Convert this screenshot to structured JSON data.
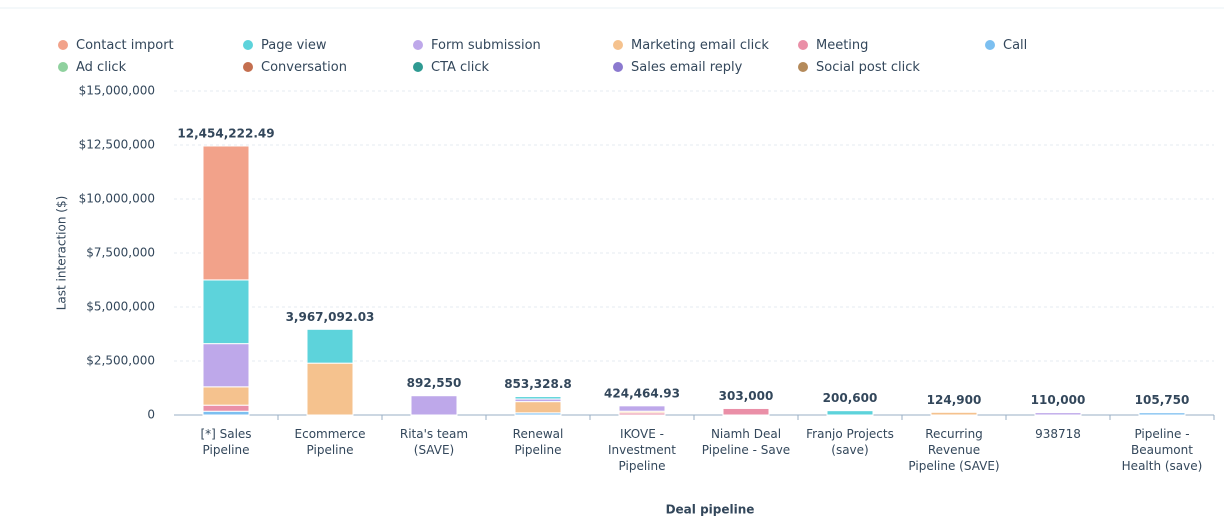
{
  "chart_data": {
    "type": "stacked-bar",
    "x_label": "Deal pipeline",
    "y_label": "Last interaction ($)",
    "categories": [
      "[*] Sales Pipeline",
      "Ecommerce Pipeline",
      "Rita's team (SAVE)",
      "Renewal Pipeline",
      "IKOVE - Investment Pipeline",
      "Niamh Deal Pipeline - Save",
      "Franjo Projects (save)",
      "Recurring Revenue Pipeline (SAVE)",
      "938718",
      "Pipeline - Beaumont Health (save)"
    ],
    "totals": [
      12454222.49,
      3967092.03,
      892550,
      853328.8,
      424464.93,
      303000,
      200600,
      124900,
      110000,
      105750
    ],
    "total_labels": [
      "12,454,222.49",
      "3,967,092.03",
      "892,550",
      "853,328.8",
      "424,464.93",
      "303,000",
      "200,600",
      "124,900",
      "110,000",
      "105,750"
    ],
    "series": [
      {
        "name": "Call",
        "color": "#7cbff0",
        "values": [
          174222.49,
          0,
          0,
          100000,
          0,
          0,
          0,
          0,
          0,
          105750
        ]
      },
      {
        "name": "Meeting",
        "color": "#ea8fa7",
        "values": [
          280000,
          0,
          0,
          0,
          100000,
          303000,
          0,
          0,
          0,
          0
        ]
      },
      {
        "name": "Marketing email click",
        "color": "#f5c28e",
        "values": [
          850000,
          2400000,
          0,
          520000,
          74464.93,
          0,
          0,
          124900,
          0,
          0
        ]
      },
      {
        "name": "Form submission",
        "color": "#bea8ea",
        "values": [
          2000000,
          0,
          892550,
          120000,
          250000,
          0,
          0,
          0,
          110000,
          0
        ]
      },
      {
        "name": "Page view",
        "color": "#5dd3db",
        "values": [
          2950000,
          1567092.03,
          0,
          113328.8,
          0,
          0,
          200600,
          0,
          0,
          0
        ]
      },
      {
        "name": "Contact import",
        "color": "#f2a28a",
        "values": [
          6200000,
          0,
          0,
          0,
          0,
          0,
          0,
          0,
          0,
          0
        ]
      },
      {
        "name": "Ad click",
        "color": "#8fd19e",
        "values": [
          0,
          0,
          0,
          0,
          0,
          0,
          0,
          0,
          0,
          0
        ]
      },
      {
        "name": "Conversation",
        "color": "#c46f4f",
        "values": [
          0,
          0,
          0,
          0,
          0,
          0,
          0,
          0,
          0,
          0
        ]
      },
      {
        "name": "CTA click",
        "color": "#2f9a92",
        "values": [
          0,
          0,
          0,
          0,
          0,
          0,
          0,
          0,
          0,
          0
        ]
      },
      {
        "name": "Sales email reply",
        "color": "#8b79cf",
        "values": [
          0,
          0,
          0,
          0,
          0,
          0,
          0,
          0,
          0,
          0
        ]
      },
      {
        "name": "Social post click",
        "color": "#b48a5a",
        "values": [
          0,
          0,
          0,
          0,
          0,
          0,
          0,
          0,
          0,
          0
        ]
      }
    ],
    "legend_order": [
      5,
      4,
      3,
      2,
      1,
      0,
      6,
      7,
      8,
      9,
      10
    ],
    "ylim": [
      0,
      15000000
    ],
    "yticks": [
      0,
      {
        "value": 2500000,
        "label": "$2,500,000"
      },
      {
        "value": 5000000,
        "label": "$5,000,000"
      },
      {
        "value": 7500000,
        "label": "$7,500,000"
      },
      {
        "value": 10000000,
        "label": "$10,000,000"
      },
      {
        "value": 12500000,
        "label": "$12,500,000"
      },
      {
        "value": 15000000,
        "label": "$15,000,000"
      }
    ],
    "grid": true
  }
}
